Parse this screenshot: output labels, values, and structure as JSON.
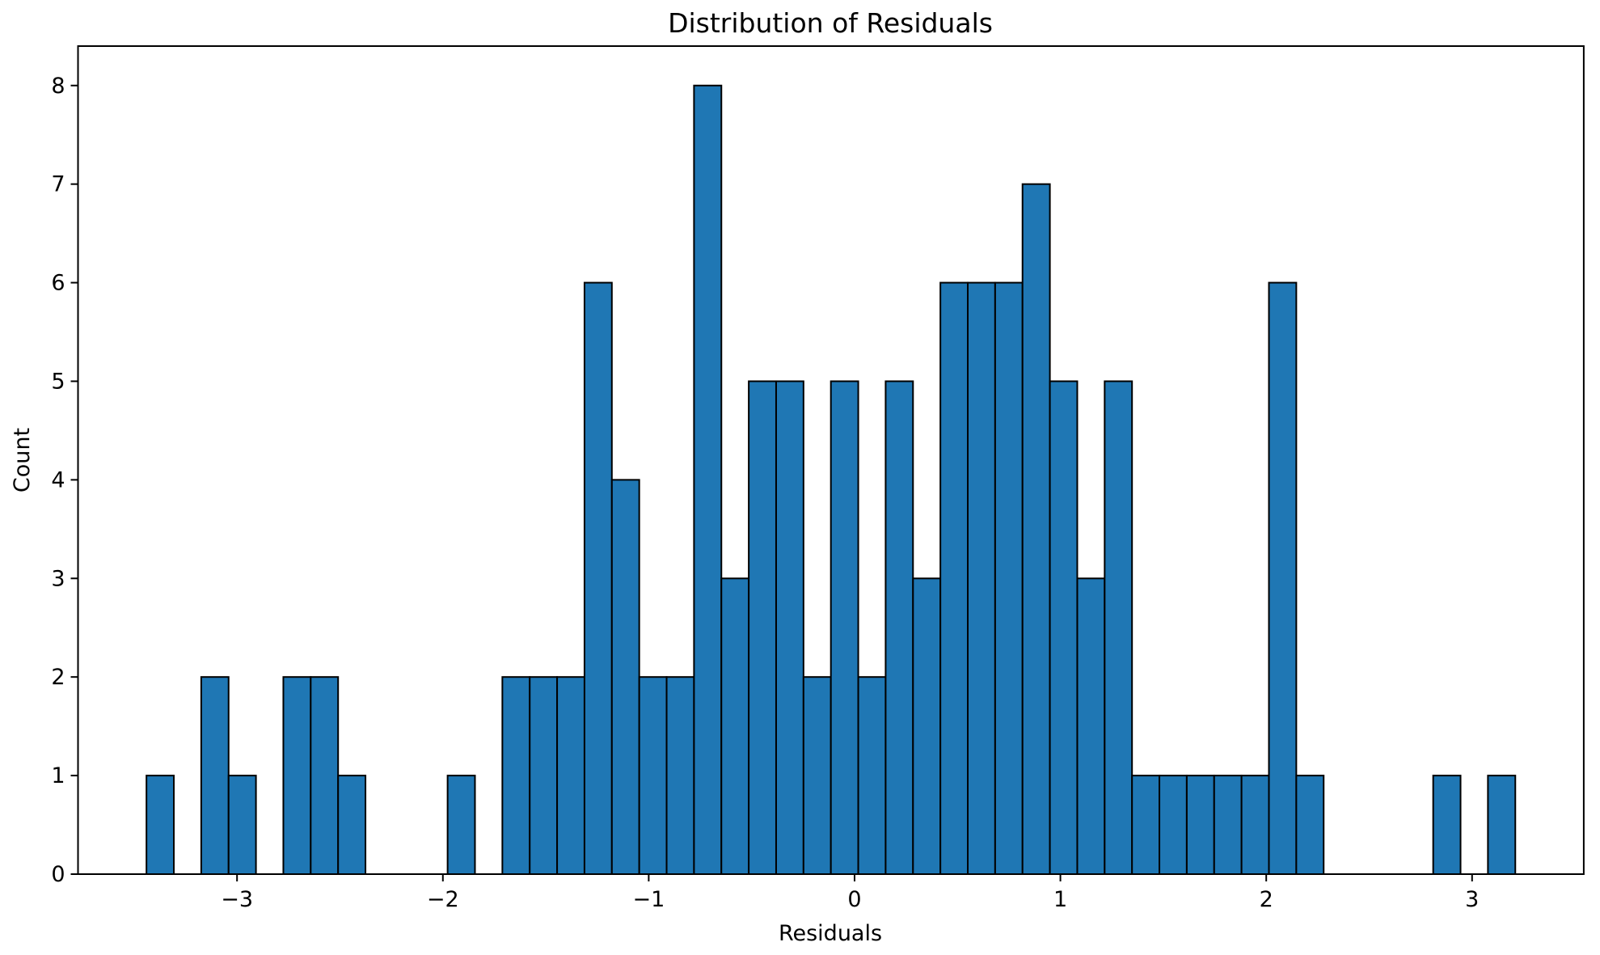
{
  "chart_data": {
    "type": "bar",
    "subtype": "histogram",
    "title": "Distribution of Residuals",
    "xlabel": "Residuals",
    "ylabel": "Count",
    "bin_start": -3.44,
    "bin_width": 0.133,
    "counts": [
      1,
      0,
      2,
      1,
      0,
      2,
      2,
      1,
      0,
      0,
      0,
      1,
      0,
      2,
      2,
      2,
      6,
      4,
      2,
      2,
      8,
      3,
      5,
      5,
      2,
      5,
      2,
      5,
      3,
      6,
      6,
      6,
      7,
      5,
      3,
      5,
      1,
      1,
      1,
      1,
      1,
      6,
      1,
      0,
      0,
      0,
      0,
      1,
      0,
      1
    ],
    "total_observations": 120,
    "xlim": [
      -3.7725,
      3.5425
    ],
    "ylim": [
      0,
      8.4
    ],
    "xticks": [
      {
        "value": -3,
        "label": "−3"
      },
      {
        "value": -2,
        "label": "−2"
      },
      {
        "value": -1,
        "label": "−1"
      },
      {
        "value": 0,
        "label": "0"
      },
      {
        "value": 1,
        "label": "1"
      },
      {
        "value": 2,
        "label": "2"
      },
      {
        "value": 3,
        "label": "3"
      }
    ],
    "yticks": [
      {
        "value": 0,
        "label": "0"
      },
      {
        "value": 1,
        "label": "1"
      },
      {
        "value": 2,
        "label": "2"
      },
      {
        "value": 3,
        "label": "3"
      },
      {
        "value": 4,
        "label": "4"
      },
      {
        "value": 5,
        "label": "5"
      },
      {
        "value": 6,
        "label": "6"
      },
      {
        "value": 7,
        "label": "7"
      },
      {
        "value": 8,
        "label": "8"
      }
    ],
    "grid": false,
    "legend": null,
    "bar_color": "#1f77b4",
    "bar_edge_color": "#000000",
    "spine_color": "#000000",
    "background_color": "#ffffff"
  }
}
